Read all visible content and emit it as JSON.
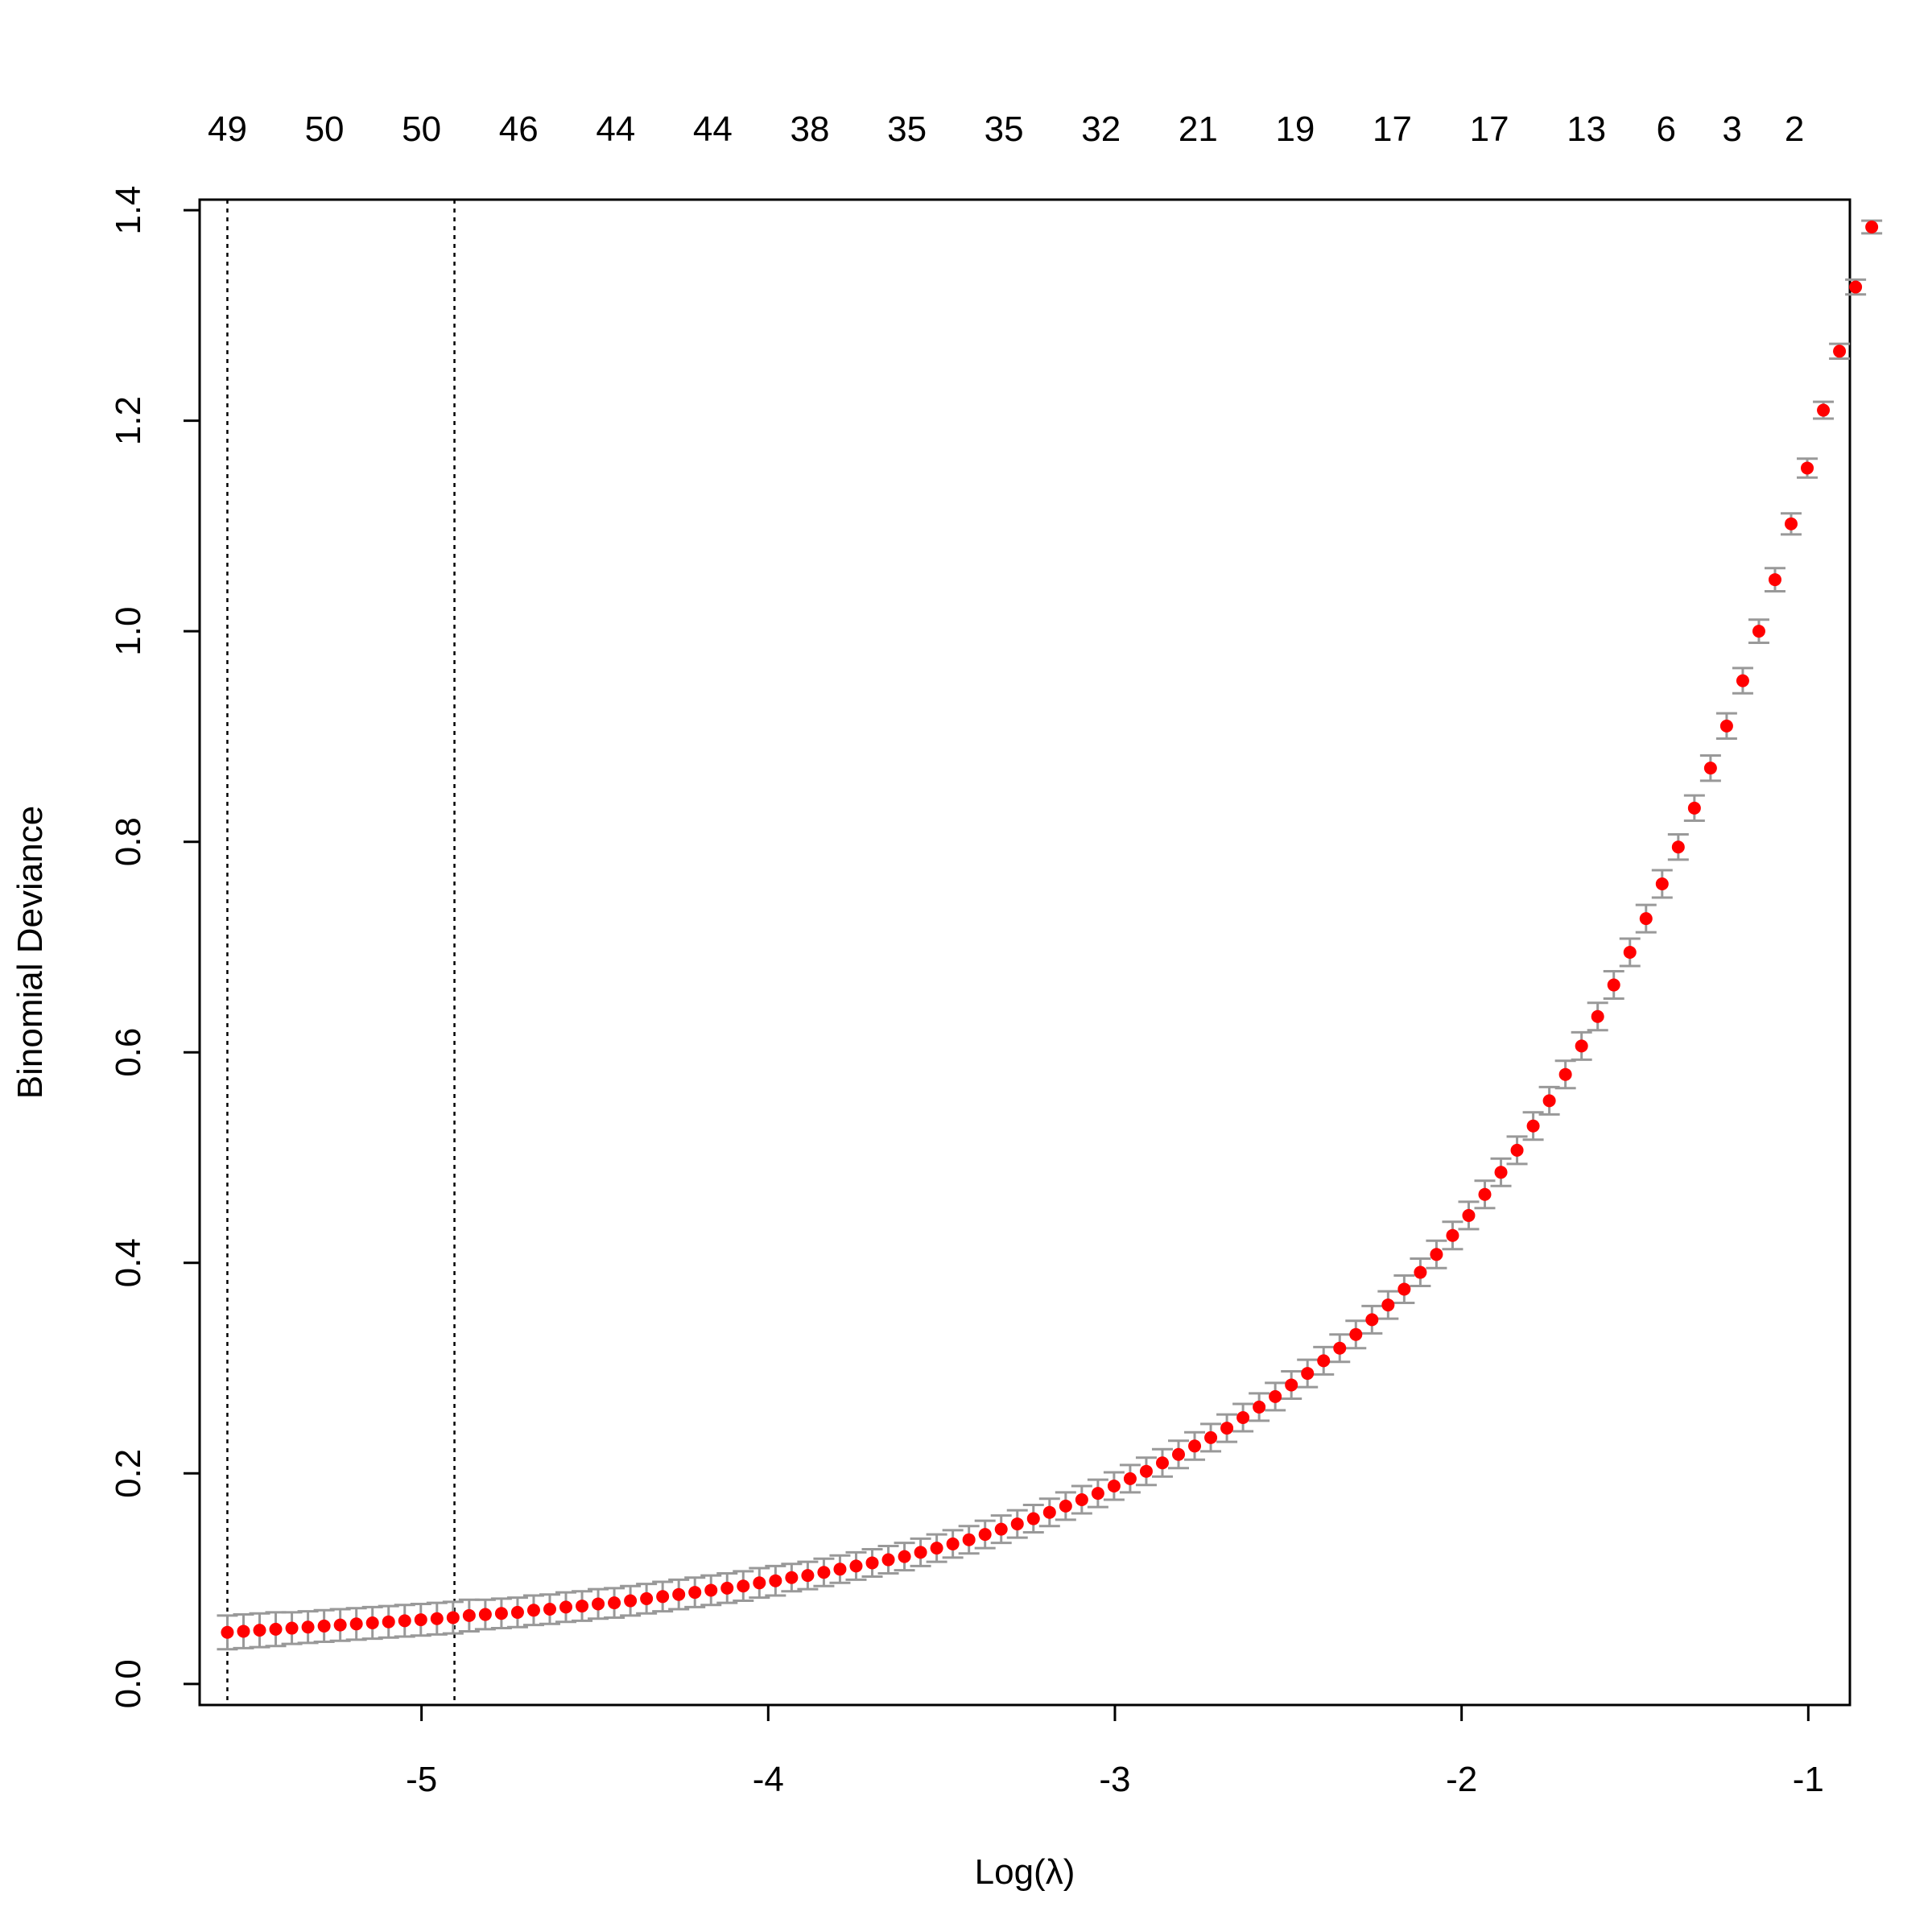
{
  "chart_data": {
    "type": "scatter",
    "title": "",
    "xlabel": "Log(λ)",
    "ylabel": "Binomial Deviance",
    "xlim": [
      -5.64,
      -0.88
    ],
    "ylim": [
      -0.02,
      1.41
    ],
    "x_ticks": [
      -5,
      -4,
      -3,
      -2,
      -1
    ],
    "x_tick_labels": [
      "-5",
      "-4",
      "-3",
      "-2",
      "-1"
    ],
    "y_ticks": [
      0.0,
      0.2,
      0.4,
      0.6,
      0.8,
      1.0,
      1.2,
      1.4
    ],
    "y_tick_labels": [
      "0.0",
      "0.2",
      "0.4",
      "0.6",
      "0.8",
      "1.0",
      "1.2",
      "1.4"
    ],
    "grid": false,
    "legend": "none",
    "top_axis": {
      "positions": [
        -5.56,
        -5.28,
        -5.0,
        -4.72,
        -4.44,
        -4.16,
        -3.88,
        -3.6,
        -3.32,
        -3.04,
        -2.76,
        -2.48,
        -2.2,
        -1.92,
        -1.64,
        -1.41,
        -1.22,
        -1.04
      ],
      "labels": [
        "49",
        "50",
        "50",
        "46",
        "44",
        "44",
        "38",
        "35",
        "35",
        "32",
        "21",
        "19",
        "17",
        "17",
        "13",
        "6",
        "3",
        "2"
      ]
    },
    "reference_lines": {
      "lambda_min": -5.56,
      "lambda_1se": -4.905
    },
    "series": [
      {
        "x_start": -5.56,
        "x_step": 0.0465,
        "y": [
          0.049,
          0.05,
          0.051,
          0.052,
          0.053,
          0.054,
          0.055,
          0.056,
          0.057,
          0.058,
          0.059,
          0.06,
          0.061,
          0.062,
          0.063,
          0.065,
          0.066,
          0.067,
          0.068,
          0.07,
          0.071,
          0.073,
          0.074,
          0.076,
          0.077,
          0.079,
          0.081,
          0.083,
          0.085,
          0.087,
          0.089,
          0.091,
          0.093,
          0.096,
          0.098,
          0.101,
          0.103,
          0.106,
          0.109,
          0.112,
          0.115,
          0.118,
          0.121,
          0.125,
          0.129,
          0.133,
          0.137,
          0.142,
          0.147,
          0.152,
          0.157,
          0.163,
          0.169,
          0.175,
          0.181,
          0.188,
          0.195,
          0.202,
          0.21,
          0.218,
          0.226,
          0.234,
          0.243,
          0.253,
          0.263,
          0.273,
          0.284,
          0.295,
          0.307,
          0.319,
          0.332,
          0.346,
          0.36,
          0.375,
          0.391,
          0.408,
          0.426,
          0.445,
          0.465,
          0.486,
          0.507,
          0.53,
          0.554,
          0.579,
          0.606,
          0.634,
          0.664,
          0.695,
          0.727,
          0.76,
          0.795,
          0.832,
          0.87,
          0.91,
          0.953,
          1.0,
          1.049,
          1.102,
          1.155,
          1.21,
          1.266,
          1.327,
          1.384
        ],
        "se": [
          0.016,
          0.016,
          0.016,
          0.016,
          0.015,
          0.015,
          0.015,
          0.015,
          0.015,
          0.015,
          0.015,
          0.015,
          0.015,
          0.015,
          0.015,
          0.015,
          0.014,
          0.014,
          0.014,
          0.014,
          0.014,
          0.014,
          0.014,
          0.014,
          0.014,
          0.014,
          0.014,
          0.014,
          0.014,
          0.014,
          0.014,
          0.014,
          0.014,
          0.014,
          0.014,
          0.013,
          0.013,
          0.013,
          0.013,
          0.013,
          0.013,
          0.013,
          0.013,
          0.013,
          0.013,
          0.013,
          0.013,
          0.013,
          0.013,
          0.013,
          0.013,
          0.013,
          0.013,
          0.013,
          0.013,
          0.013,
          0.013,
          0.013,
          0.013,
          0.013,
          0.013,
          0.013,
          0.013,
          0.013,
          0.013,
          0.013,
          0.013,
          0.013,
          0.013,
          0.013,
          0.013,
          0.013,
          0.013,
          0.013,
          0.013,
          0.013,
          0.013,
          0.013,
          0.013,
          0.013,
          0.013,
          0.013,
          0.013,
          0.013,
          0.013,
          0.013,
          0.013,
          0.013,
          0.013,
          0.013,
          0.012,
          0.012,
          0.012,
          0.012,
          0.012,
          0.011,
          0.011,
          0.01,
          0.009,
          0.008,
          0.007,
          0.007,
          0.006
        ]
      }
    ],
    "colors": {
      "point": "#ff0000",
      "error_bar": "#999999",
      "axis": "#000000",
      "reference_line": "#000000"
    }
  }
}
